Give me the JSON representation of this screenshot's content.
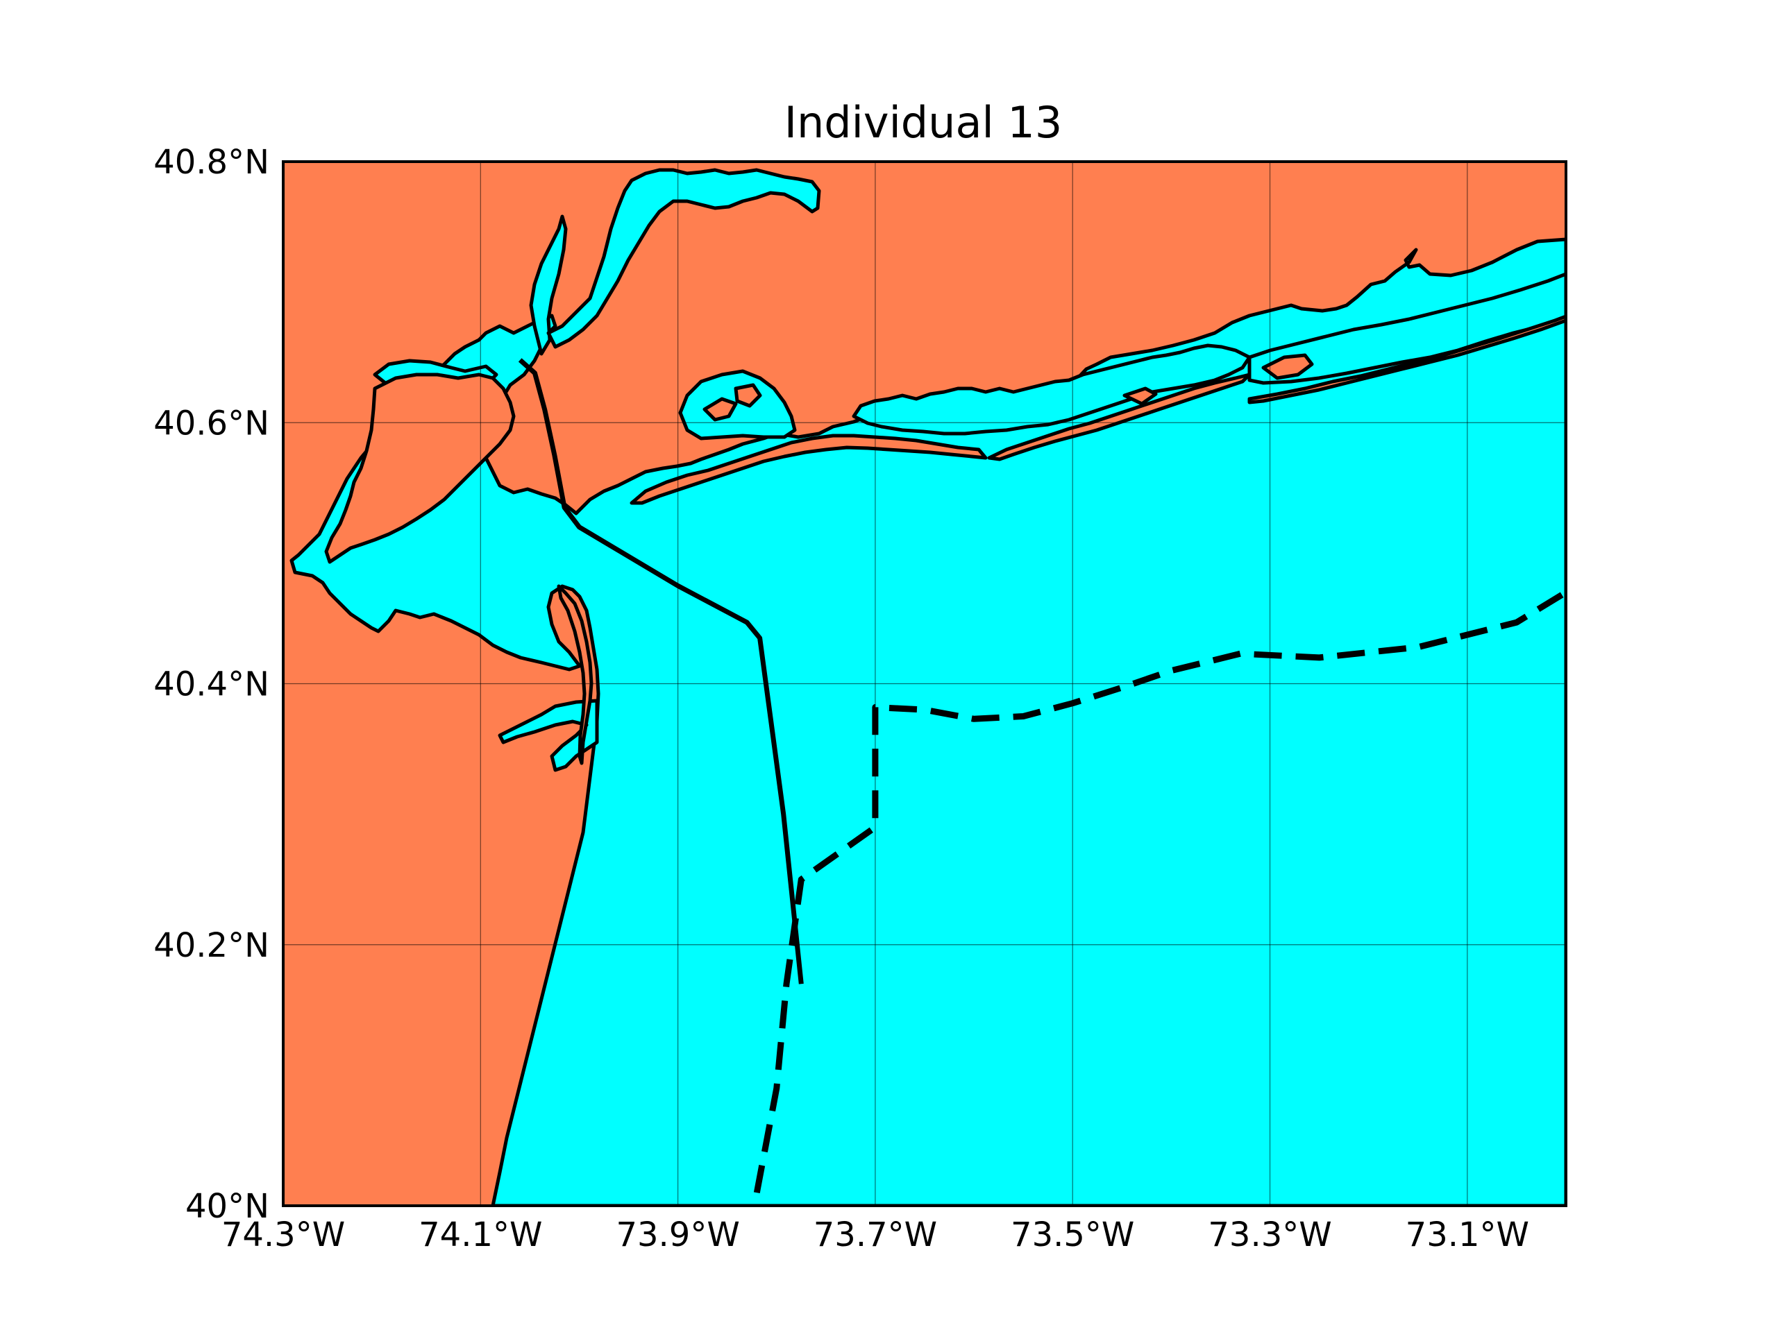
{
  "title": "Individual 13",
  "colors": {
    "land": "#ff7f50",
    "water": "#00ffff",
    "track": "#000000"
  },
  "map": {
    "lon_range": [
      -74.3,
      -73.0
    ],
    "lat_range": [
      40.0,
      40.8
    ],
    "x_ticks": [
      {
        "value": -74.3,
        "label": "74.3°W"
      },
      {
        "value": -74.1,
        "label": "74.1°W"
      },
      {
        "value": -73.9,
        "label": "73.9°W"
      },
      {
        "value": -73.7,
        "label": "73.7°W"
      },
      {
        "value": -73.5,
        "label": "73.5°W"
      },
      {
        "value": -73.3,
        "label": "73.3°W"
      },
      {
        "value": -73.1,
        "label": "73.1°W"
      }
    ],
    "y_ticks": [
      {
        "value": 40.0,
        "label": "40°N"
      },
      {
        "value": 40.2,
        "label": "40.2°N"
      },
      {
        "value": 40.4,
        "label": "40.4°N"
      },
      {
        "value": 40.6,
        "label": "40.6°N"
      },
      {
        "value": 40.8,
        "label": "40.8°N"
      }
    ],
    "grid": true
  },
  "tracks": [
    {
      "style": "solid",
      "points": [
        [
          -74.06,
          40.648
        ],
        [
          -74.045,
          40.638
        ],
        [
          -74.035,
          40.61
        ],
        [
          -74.025,
          40.575
        ],
        [
          -74.015,
          40.535
        ],
        [
          -74.0,
          40.52
        ],
        [
          -73.9,
          40.475
        ],
        [
          -73.83,
          40.447
        ],
        [
          -73.817,
          40.435
        ],
        [
          -73.793,
          40.3
        ],
        [
          -73.775,
          40.17
        ]
      ]
    },
    {
      "style": "dashed",
      "points": [
        [
          -73.82,
          40.01
        ],
        [
          -73.8,
          40.09
        ],
        [
          -73.79,
          40.17
        ],
        [
          -73.775,
          40.25
        ],
        [
          -73.7,
          40.29
        ],
        [
          -73.7,
          40.382
        ],
        [
          -73.65,
          40.38
        ],
        [
          -73.6,
          40.373
        ],
        [
          -73.55,
          40.375
        ],
        [
          -73.5,
          40.385
        ],
        [
          -73.45,
          40.397
        ],
        [
          -73.4,
          40.41
        ],
        [
          -73.33,
          40.423
        ],
        [
          -73.25,
          40.42
        ],
        [
          -73.15,
          40.428
        ],
        [
          -73.05,
          40.447
        ],
        [
          -73.0,
          40.47
        ]
      ]
    }
  ]
}
